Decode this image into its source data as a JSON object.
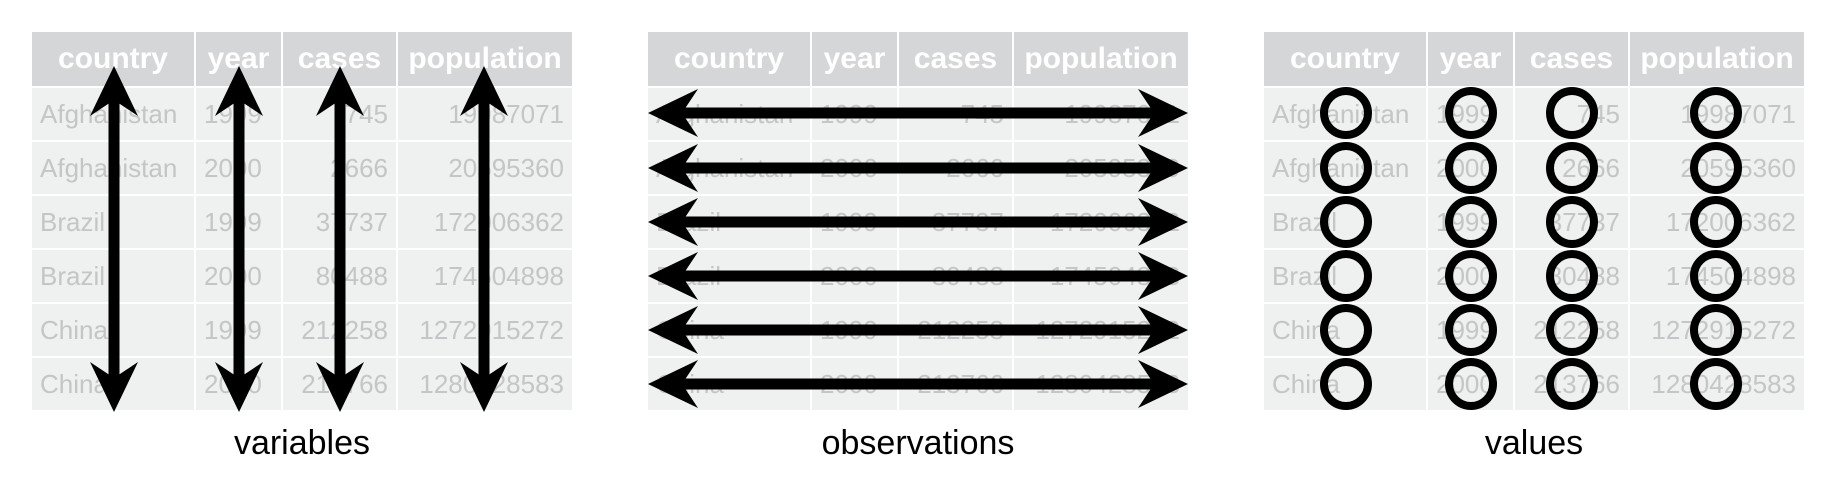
{
  "colors": {
    "header_bg": "#d5d6d8",
    "row_bg": "#eff0f0",
    "row_text": "#c4c5c6",
    "mark": "#000000"
  },
  "panels": [
    {
      "caption": "variables",
      "mark": "vertical-arrows"
    },
    {
      "caption": "observations",
      "mark": "horizontal-arrows"
    },
    {
      "caption": "values",
      "mark": "circles"
    }
  ],
  "table": {
    "headers": [
      "country",
      "year",
      "cases",
      "population"
    ],
    "rows": [
      [
        "Afghanistan",
        "1999",
        "745",
        "19987071"
      ],
      [
        "Afghanistan",
        "2000",
        "2666",
        "20595360"
      ],
      [
        "Brazil",
        "1999",
        "37737",
        "172006362"
      ],
      [
        "Brazil",
        "2000",
        "80488",
        "174504898"
      ],
      [
        "China",
        "1999",
        "212258",
        "1272915272"
      ],
      [
        "China",
        "2000",
        "213766",
        "1280428583"
      ]
    ]
  }
}
